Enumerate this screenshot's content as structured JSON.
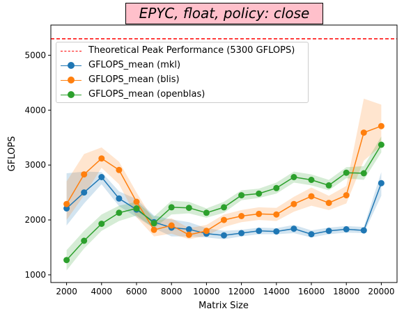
{
  "chart_data": {
    "type": "line",
    "title": "EPYC, float, policy: close",
    "xlabel": "Matrix Size",
    "ylabel": "GFLOPS",
    "x": [
      2000,
      3000,
      4000,
      5000,
      6000,
      7000,
      8000,
      9000,
      10000,
      11000,
      12000,
      13000,
      14000,
      15000,
      16000,
      17000,
      18000,
      19000,
      20000
    ],
    "xlim": [
      1100,
      20900
    ],
    "ylim": [
      860,
      5550
    ],
    "xticks": [
      2000,
      4000,
      6000,
      8000,
      10000,
      12000,
      14000,
      16000,
      18000,
      20000
    ],
    "yticks": [
      1000,
      2000,
      3000,
      4000,
      5000
    ],
    "peak": {
      "label": "Theoretical Peak Performance (5300 GFLOPS)",
      "value": 5300,
      "color": "#ff0000"
    },
    "series": [
      {
        "name": "GFLOPS_mean (mkl)",
        "color": "#1f77b4",
        "values": [
          2210,
          2500,
          2780,
          2390,
          2190,
          1960,
          1860,
          1830,
          1750,
          1720,
          1760,
          1800,
          1790,
          1840,
          1740,
          1800,
          1830,
          1810,
          2670
        ],
        "band_low": [
          1900,
          2300,
          2650,
          2250,
          2050,
          1850,
          1700,
          1700,
          1680,
          1650,
          1700,
          1740,
          1740,
          1760,
          1680,
          1740,
          1770,
          1760,
          2440
        ],
        "band_high": [
          2850,
          2880,
          2870,
          2520,
          2380,
          2080,
          2010,
          1960,
          1850,
          1800,
          1820,
          1860,
          1850,
          1910,
          1810,
          1860,
          1890,
          1870,
          2870
        ]
      },
      {
        "name": "GFLOPS_mean (blis)",
        "color": "#ff7f0e",
        "values": [
          2290,
          2830,
          3120,
          2910,
          2330,
          1820,
          1900,
          1730,
          1800,
          2000,
          2070,
          2110,
          2100,
          2290,
          2430,
          2310,
          2450,
          3590,
          3710
        ],
        "band_low": [
          2000,
          2450,
          2950,
          2650,
          2050,
          1700,
          1750,
          1650,
          1710,
          1870,
          1960,
          2000,
          1980,
          2150,
          2260,
          2180,
          2300,
          3080,
          3350
        ],
        "band_high": [
          2700,
          3200,
          3320,
          3060,
          2500,
          1980,
          2030,
          1850,
          1910,
          2100,
          2180,
          2230,
          2220,
          2420,
          2590,
          2440,
          2620,
          4210,
          4100
        ]
      },
      {
        "name": "GFLOPS_mean (openblas)",
        "color": "#2ca02c",
        "values": [
          1270,
          1620,
          1930,
          2130,
          2210,
          1940,
          2230,
          2220,
          2130,
          2230,
          2450,
          2480,
          2580,
          2780,
          2730,
          2630,
          2860,
          2850,
          3370
        ],
        "band_low": [
          1080,
          1480,
          1800,
          1980,
          2080,
          1850,
          2100,
          2120,
          2040,
          2130,
          2360,
          2400,
          2480,
          2680,
          2630,
          2540,
          2760,
          2730,
          3230
        ],
        "band_high": [
          1450,
          1800,
          2100,
          2260,
          2330,
          2060,
          2350,
          2330,
          2210,
          2330,
          2540,
          2570,
          2680,
          2880,
          2830,
          2730,
          2960,
          2980,
          3520
        ]
      }
    ]
  }
}
